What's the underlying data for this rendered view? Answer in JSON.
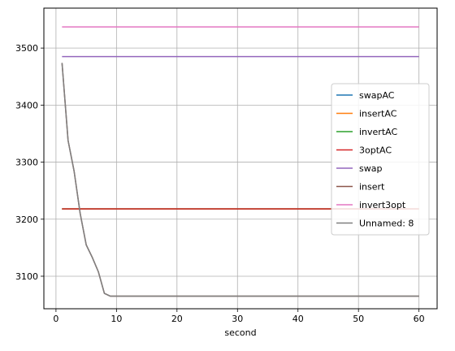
{
  "chart_data": {
    "type": "line",
    "title": "",
    "xlabel": "second",
    "ylabel": "",
    "xlim": [
      -2,
      63
    ],
    "ylim": [
      3043,
      3570
    ],
    "xticks": [
      0,
      10,
      20,
      30,
      40,
      50,
      60
    ],
    "yticks": [
      3100,
      3200,
      3300,
      3400,
      3500
    ],
    "grid": true,
    "legend_position": "center-right",
    "series": [
      {
        "name": "swapAC",
        "color": "#1f77b4",
        "x": [
          1,
          60
        ],
        "y": [
          3218,
          3218
        ]
      },
      {
        "name": "insertAC",
        "color": "#ff7f0e",
        "x": [
          1,
          60
        ],
        "y": [
          3218,
          3218
        ]
      },
      {
        "name": "invertAC",
        "color": "#2ca02c",
        "x": [
          1,
          60
        ],
        "y": [
          3218,
          3218
        ]
      },
      {
        "name": "3optAC",
        "color": "#d62728",
        "x": [
          1,
          60
        ],
        "y": [
          3218,
          3218
        ]
      },
      {
        "name": "swap",
        "color": "#9467bd",
        "x": [
          1,
          60
        ],
        "y": [
          3485,
          3485
        ]
      },
      {
        "name": "insert",
        "color": "#8c564b",
        "x": [
          1,
          2,
          3,
          4,
          5,
          6,
          7,
          8,
          9,
          10,
          20,
          30,
          40,
          50,
          60
        ],
        "y": [
          3474,
          3338,
          3284,
          3210,
          3155,
          3133,
          3108,
          3070,
          3065,
          3065,
          3065,
          3065,
          3065,
          3065,
          3065
        ]
      },
      {
        "name": "invert3opt",
        "color": "#e377c2",
        "x": [
          1,
          60
        ],
        "y": [
          3537,
          3537
        ]
      },
      {
        "name": "Unnamed: 8",
        "color": "#7f7f7f",
        "x": [
          1,
          2,
          3,
          4,
          5,
          6,
          7,
          8,
          9,
          10,
          20,
          30,
          40,
          50,
          60
        ],
        "y": [
          3474,
          3338,
          3284,
          3210,
          3155,
          3133,
          3108,
          3070,
          3065,
          3065,
          3065,
          3065,
          3065,
          3065,
          3065
        ]
      }
    ]
  }
}
